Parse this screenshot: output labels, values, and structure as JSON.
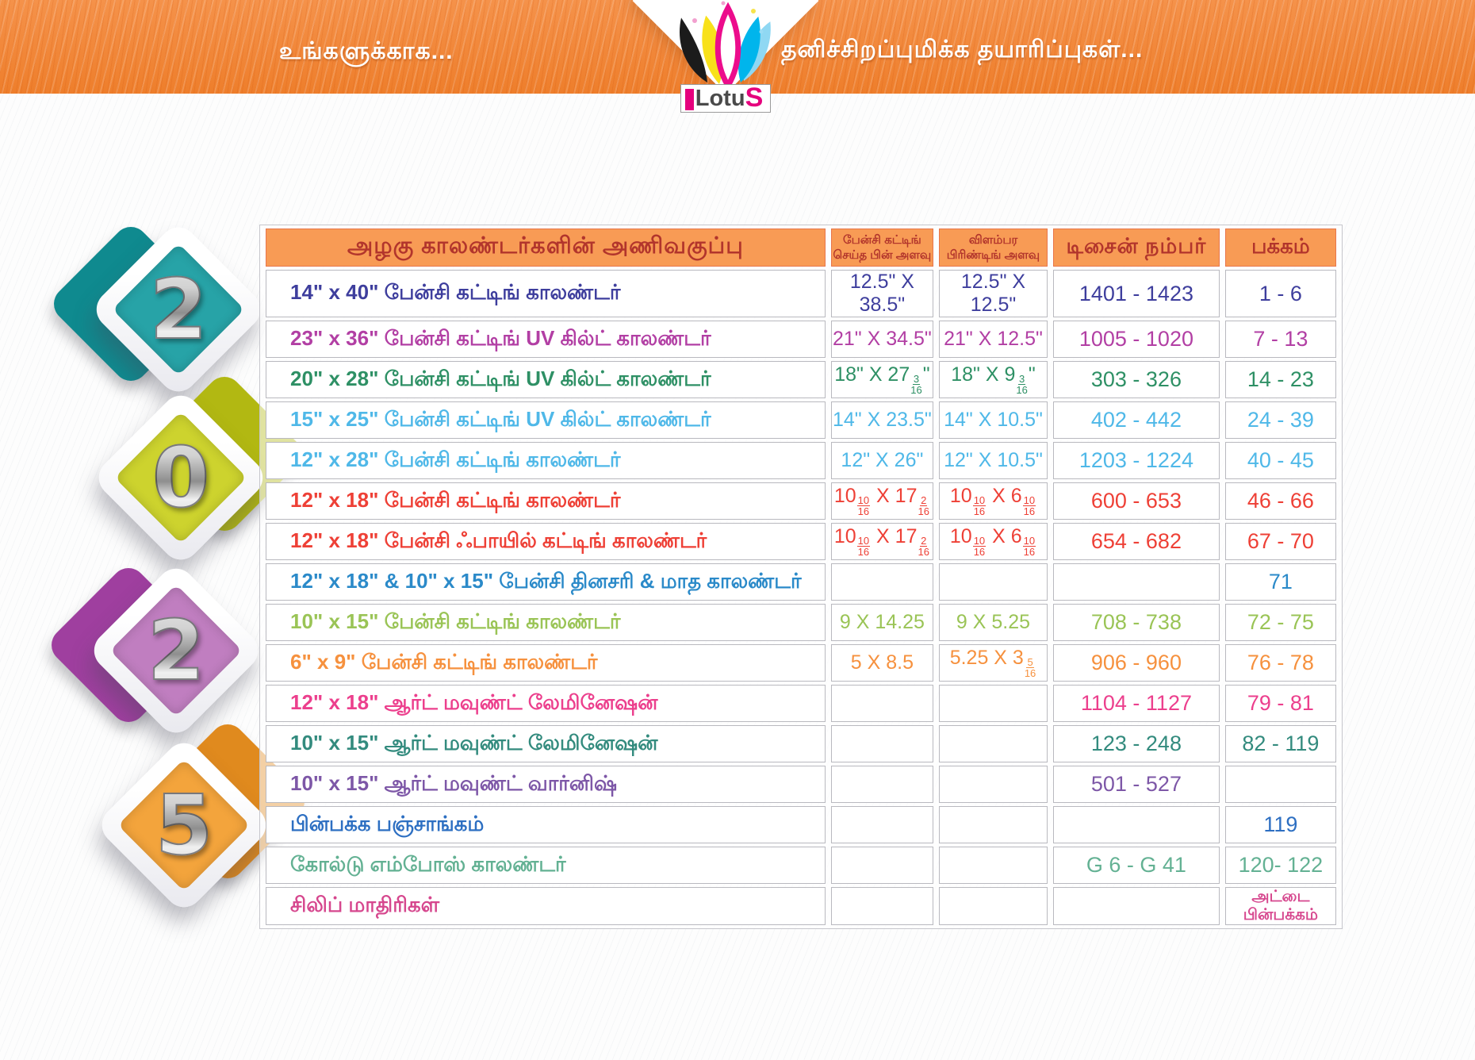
{
  "header": {
    "left_text": "உங்களுக்காக...",
    "right_text": "தனிச்சிறப்புமிக்க  தயாரிப்புகள்...",
    "logo": {
      "brand_prefix": "Lotu",
      "brand_suffix": "S"
    },
    "band_color": "#ee7e2b"
  },
  "year_badges": [
    {
      "digit": "2",
      "color": "#27a3a7",
      "back_color": "#0f8a8f",
      "side": "left"
    },
    {
      "digit": "0",
      "color": "#cdd32e",
      "back_color": "#b2b812",
      "side": "right"
    },
    {
      "digit": "2",
      "color": "#c07ec0",
      "back_color": "#9f3f9f",
      "side": "left"
    },
    {
      "digit": "5",
      "color": "#f3a43c",
      "back_color": "#e08a1e",
      "side": "right"
    }
  ],
  "table": {
    "header_bg": "#f89b55",
    "header_text_color": "#b2352c",
    "headers": {
      "lineup": "அழகு  காலண்டர்களின்  அணிவகுப்பு",
      "cut_size": "பேன்சி கட்டிங்\nசெய்த பின் அளவு",
      "print_size": "விளம்பர\nபிரிண்டிங் அளவு",
      "design_number": "டிசைன்  நம்பர்",
      "page": "பக்கம்"
    },
    "rows": [
      {
        "label": "14\" x 40\" பேன்சி  கட்டிங்  காலண்டர்",
        "cut_size": "12.5\" X 38.5\"",
        "print_size": "12.5\" X 12.5\"",
        "design": "1401 - 1423",
        "page": "1 - 6",
        "color": "#3e3e9d"
      },
      {
        "label": "23\" x 36\" பேன்சி  கட்டிங்  UV  கில்ட்  காலண்டர்",
        "cut_size": "21\" X 34.5\"",
        "print_size": "21\" X 12.5\"",
        "design": "1005 - 1020",
        "page": "7 - 13",
        "color": "#b23fa4"
      },
      {
        "label": "20\" x 28\" பேன்சி  கட்டிங்  UV  கில்ட்  காலண்டர்",
        "cut_size": "18\" X 27 3/16\"",
        "print_size": "18\" X 9 3/16\"",
        "design": "303 - 326",
        "page": "14 - 23",
        "color": "#2e9065"
      },
      {
        "label": "15\" x 25\" பேன்சி  கட்டிங்  UV  கில்ட்  காலண்டர்",
        "cut_size": "14\" X 23.5\"",
        "print_size": "14\" X 10.5\"",
        "design": "402 - 442",
        "page": "24 - 39",
        "color": "#4fb8e8"
      },
      {
        "label": "12\" x 28\" பேன்சி கட்டிங்  காலண்டர்",
        "cut_size": "12\" X 26\"",
        "print_size": "12\" X 10.5\"",
        "design": "1203 - 1224",
        "page": "40 - 45",
        "color": "#4fb8e8"
      },
      {
        "label": "12\" x 18\" பேன்சி  கட்டிங்  காலண்டர்",
        "cut_size": "10 10/16 X 17 2/16",
        "print_size": "10 10/16 X 6 10/16",
        "design": "600 - 653",
        "page": "46 - 66",
        "color": "#ee4036"
      },
      {
        "label": "12\" x 18\"  பேன்சி  ஃபாயில்  கட்டிங்  காலண்டர்",
        "cut_size": "10 10/16 X 17 2/16",
        "print_size": "10 10/16 X 6 10/16",
        "design": "654 - 682",
        "page": "67 - 70",
        "color": "#ee4036"
      },
      {
        "label": "12\" x 18\" & 10\" x 15\"  பேன்சி  தினசரி  &  மாத  காலண்டர்",
        "cut_size": "",
        "print_size": "",
        "design": "",
        "page": "71",
        "color": "#2b8ac9"
      },
      {
        "label": "10\" x 15\" பேன்சி  கட்டிங்  காலண்டர்",
        "cut_size": "9 X 14.25",
        "print_size": "9 X 5.25",
        "design": "708 - 738",
        "page": "72 - 75",
        "color": "#9ac456"
      },
      {
        "label": "6\" x 9\"      பேன்சி  கட்டிங்  காலண்டர்",
        "cut_size": "5  X 8.5",
        "print_size": "5.25 X 3 5/16",
        "design": "906 - 960",
        "page": "76 - 78",
        "color": "#f6913e"
      },
      {
        "label": "12\" x 18\" ஆர்ட்  மவுண்ட்  லேமினேஷன்",
        "cut_size": "",
        "print_size": "",
        "design": "1104 - 1127",
        "page": "79 - 81",
        "color": "#ec3f8d"
      },
      {
        "label": "10\" x 15\" ஆர்ட்  மவுண்ட்  லேமினேஷன்",
        "cut_size": "",
        "print_size": "",
        "design": "123 -  248",
        "page": "82 - 119",
        "color": "#338b7e"
      },
      {
        "label": "10\" x 15\" ஆர்ட்  மவுண்ட்  வார்னிஷ்",
        "cut_size": "",
        "print_size": "",
        "design": "501 - 527",
        "page": "",
        "color": "#7d57a7"
      },
      {
        "label": "பின்பக்க  பஞ்சாங்கம்",
        "cut_size": "",
        "print_size": "",
        "design": "",
        "page": "119",
        "color": "#2d6fc2"
      },
      {
        "label": "கோல்டு  எம்போஸ்  காலண்டர்",
        "cut_size": "",
        "print_size": "",
        "design": "G 6 - G 41",
        "page": "120- 122",
        "color": "#63b193"
      },
      {
        "label": "சிலிப்  மாதிரிகள்",
        "cut_size": "",
        "print_size": "",
        "design": "",
        "page": "அட்டை\nபின்பக்கம்",
        "color": "#d6478e"
      }
    ]
  }
}
